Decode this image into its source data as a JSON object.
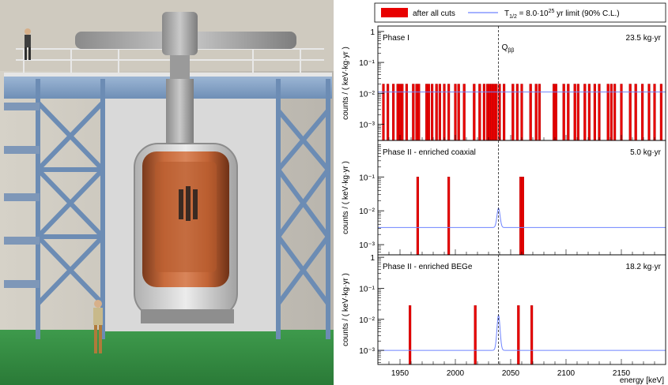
{
  "colors": {
    "bar": "#e80000",
    "bar_edge": "#b00000",
    "limit_line": "#6f84ff",
    "axis": "#000000"
  },
  "legend": {
    "bar_label": "after all cuts",
    "line_label_prefix": "T",
    "line_label_sub": "1/2",
    "line_label_mid": " = 8.0·10",
    "line_label_sup": "25",
    "line_label_suffix": " yr limit (90% C.L.)"
  },
  "q_label": "Q",
  "q_label_sub": "ββ",
  "x_axis_label": "energy [keV]",
  "chart_data": [
    {
      "type": "bar",
      "panel": "Phase I",
      "exposure": "23.5 kg·yr",
      "ylabel": "counts / ( keV·kg·yr )",
      "yscale": "log",
      "ylim": [
        0.0003,
        1.5
      ],
      "xlim": [
        1930,
        2190
      ],
      "bin_width": 2,
      "bar_height": 0.02,
      "y_ticks": [
        "1",
        "10⁻¹",
        "10⁻²",
        "10⁻³"
      ],
      "limit_level": 0.011,
      "peak_height": 0.011,
      "events": [
        1935,
        1939,
        1944,
        1948,
        1950,
        1952,
        1956,
        1962,
        1965,
        1967,
        1974,
        1976,
        1979,
        1983,
        1986,
        1990,
        1994,
        2000,
        2003,
        2008,
        2017,
        2022,
        2026,
        2029,
        2031,
        2033,
        2035,
        2037,
        2040,
        2044,
        2052,
        2056,
        2060,
        2068,
        2073,
        2076,
        2089,
        2091,
        2098,
        2102,
        2108,
        2111,
        2117,
        2121,
        2126,
        2130,
        2138,
        2141,
        2144,
        2150,
        2158,
        2163,
        2169,
        2175,
        2180,
        2186
      ]
    },
    {
      "type": "bar",
      "panel": "Phase II - enriched coaxial",
      "exposure": "5.0 kg·yr",
      "ylabel": "counts / ( keV·kg·yr )",
      "yscale": "log",
      "ylim": [
        0.0005,
        1.2
      ],
      "xlim": [
        1930,
        2190
      ],
      "bin_width": 2,
      "bar_height": 0.1,
      "y_ticks": [
        "10⁻¹",
        "10⁻²",
        "10⁻³"
      ],
      "limit_level": 0.0032,
      "peak_height": 0.012,
      "events": [
        1966,
        1994,
        2059,
        2061
      ]
    },
    {
      "type": "bar",
      "panel": "Phase II - enriched BEGe",
      "exposure": "18.2 kg·yr",
      "ylabel": "counts / ( keV·kg·yr )",
      "yscale": "log",
      "ylim": [
        0.00035,
        1.2
      ],
      "xlim": [
        1930,
        2190
      ],
      "bin_width": 2,
      "bar_height": 0.028,
      "y_ticks": [
        "1",
        "10⁻¹",
        "10⁻²",
        "10⁻³"
      ],
      "limit_level": 0.001,
      "peak_height": 0.014,
      "events": [
        1959,
        2018,
        2057,
        2069
      ]
    }
  ],
  "x_ticks": [
    "1950",
    "2000",
    "2050",
    "2100",
    "2150"
  ],
  "q_value": 2039
}
